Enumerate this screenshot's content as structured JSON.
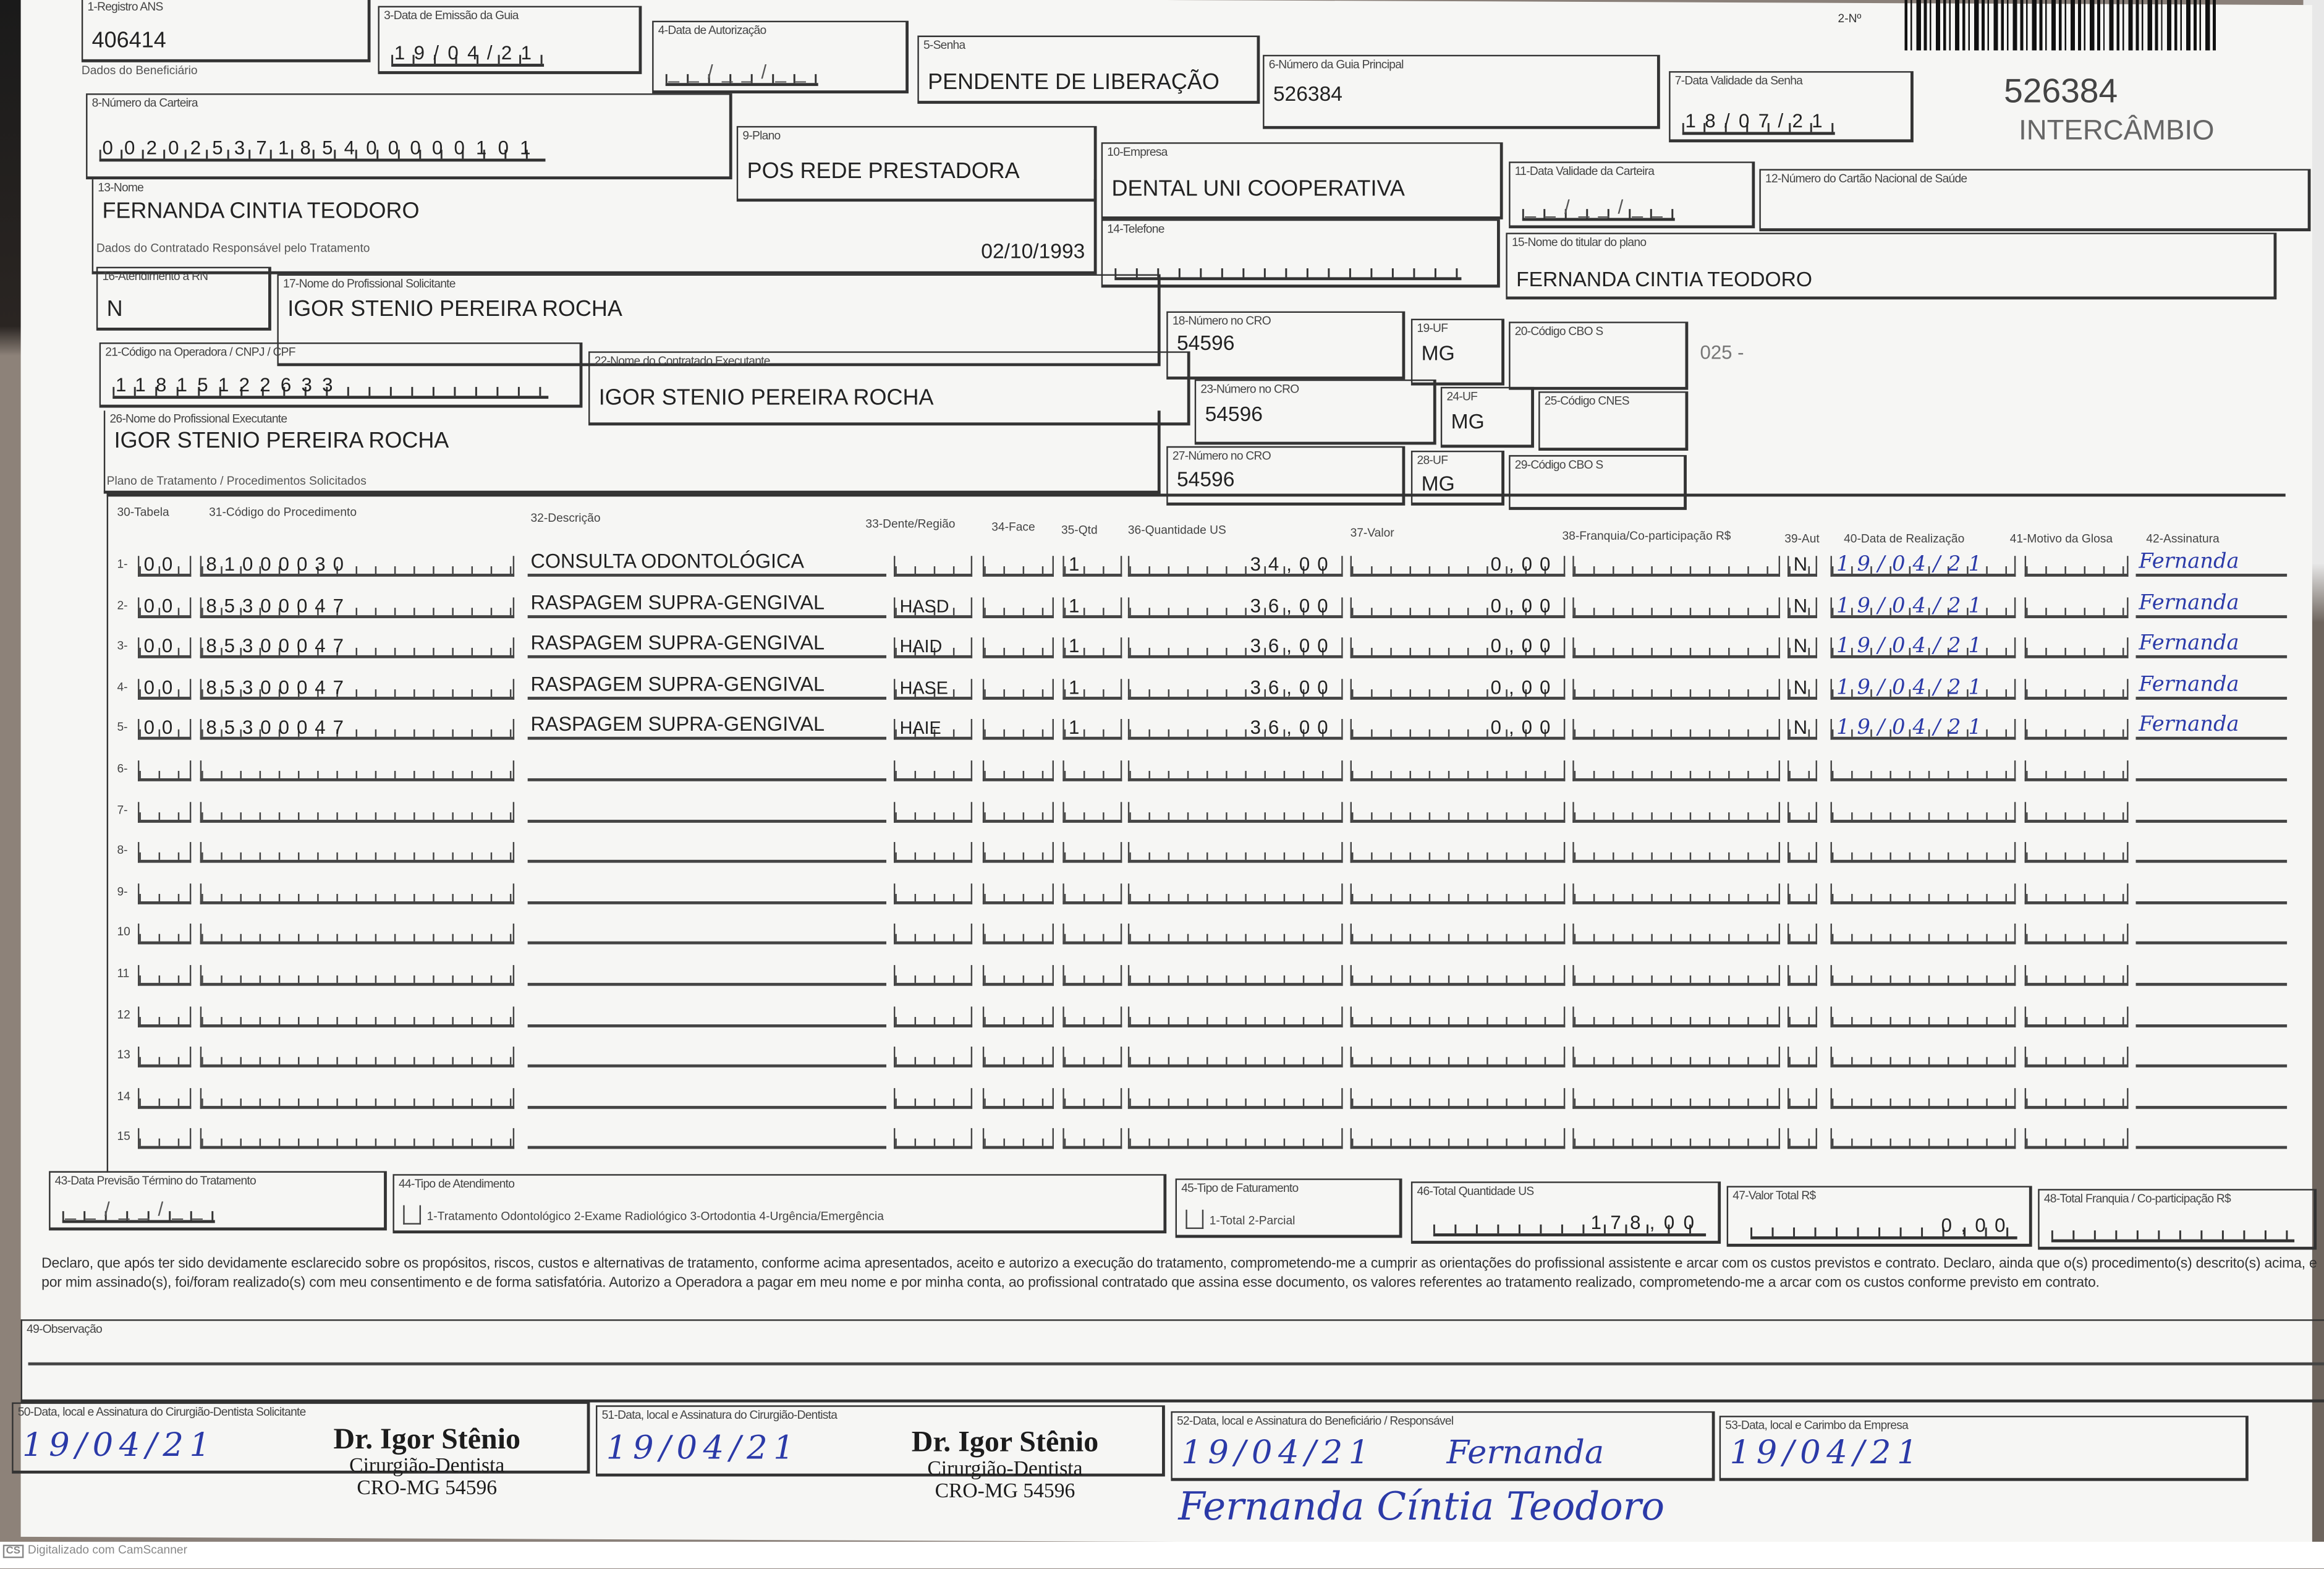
{
  "header": {
    "registro_ans": {
      "label": "1-Registro ANS",
      "value": "406414"
    },
    "data_emissao": {
      "label": "3-Data de Emissão da Guia",
      "value": "19/04/21"
    },
    "data_autorizacao": {
      "label": "4-Data de Autorização",
      "value": "__/__/__"
    },
    "senha": {
      "label": "5-Senha",
      "value": "PENDENTE DE LIBERAÇÃO"
    },
    "guia_principal": {
      "label": "6-Número da Guia Principal",
      "value": "526384"
    },
    "validade_senha": {
      "label": "7-Data Validade da Senha",
      "value": "18/07/21"
    },
    "numero_label": "2-Nº",
    "guide_number": "526384",
    "guide_type": "INTERCÂMBIO"
  },
  "beneficiario": {
    "section_title": "Dados do Beneficiário",
    "carteira": {
      "label": "8-Número da Carteira",
      "value": "00202537185400000101"
    },
    "plano": {
      "label": "9-Plano",
      "value": "POS REDE PRESTADORA"
    },
    "empresa": {
      "label": "10-Empresa",
      "value": "DENTAL UNI  COOPERATIVA"
    },
    "validade_carteira": {
      "label": "11-Data Validade da Carteira",
      "value": "__/__/__"
    },
    "cns": {
      "label": "12-Número do Cartão Nacional de Saúde",
      "value": ""
    },
    "nome": {
      "label": "13-Nome",
      "value": "FERNANDA CINTIA TEODORO",
      "birth_date": "02/10/1993"
    },
    "telefone": {
      "label": "14-Telefone",
      "value": "(  )      -     "
    },
    "titular": {
      "label": "15-Nome do titular do plano",
      "value": "FERNANDA CINTIA TEODORO"
    }
  },
  "contratado": {
    "section_title": "Dados do Contratado Responsável pelo Tratamento",
    "atendimento_rn": {
      "label": "16-Atendimento a RN",
      "value": "N"
    },
    "profissional_solicitante": {
      "label": "17-Nome do Profissional Solicitante",
      "value": "IGOR STENIO PEREIRA ROCHA"
    },
    "cro_18": {
      "label": "18-Número no CRO",
      "value": "54596"
    },
    "uf_19": {
      "label": "19-UF",
      "value": "MG"
    },
    "cbo_20": {
      "label": "20-Código CBO S",
      "value": ""
    },
    "cbo_note": "025 -",
    "codigo_operadora": {
      "label": "21-Código na Operadora / CNPJ / CPF",
      "value": "11815122633"
    },
    "contratado_executante": {
      "label": "22-Nome do Contratado Executante",
      "value": "IGOR STENIO PEREIRA ROCHA"
    },
    "cro_23": {
      "label": "23-Número no CRO",
      "value": "54596"
    },
    "uf_24": {
      "label": "24-UF",
      "value": "MG"
    },
    "cnes_25": {
      "label": "25-Código CNES",
      "value": ""
    },
    "profissional_executante": {
      "label": "26-Nome do Profissional Executante",
      "value": "IGOR STENIO PEREIRA ROCHA"
    },
    "cro_27": {
      "label": "27-Número no CRO",
      "value": "54596"
    },
    "uf_28": {
      "label": "28-UF",
      "value": "MG"
    },
    "cbo_29": {
      "label": "29-Código CBO S",
      "value": ""
    }
  },
  "plano_tratamento": {
    "section_title": "Plano de Tratamento / Procedimentos Solicitados",
    "columns": [
      "30-Tabela",
      "31-Código do Procedimento",
      "32-Descrição",
      "33-Dente/Região",
      "34-Face",
      "35-Qtd",
      "36-Quantidade US",
      "37-Valor",
      "38-Franquia/Co-participação R$",
      "39-Aut",
      "40-Data de Realização",
      "41-Motivo da Glosa",
      "42-Assinatura"
    ],
    "rows": [
      {
        "n": "1-",
        "tabela": "00",
        "codigo": "81000030",
        "descricao": "CONSULTA ODONTOLÓGICA",
        "dente": "",
        "face": "",
        "qtd": "1",
        "us": "34,00",
        "valor": "0,00",
        "franquia": "",
        "aut": "N",
        "data": "19/04/21",
        "glosa": "",
        "assinatura": "Fernanda"
      },
      {
        "n": "2-",
        "tabela": "00",
        "codigo": "85300047",
        "descricao": "RASPAGEM SUPRA-GENGIVAL",
        "dente": "HASD",
        "face": "",
        "qtd": "1",
        "us": "36,00",
        "valor": "0,00",
        "franquia": "",
        "aut": "N",
        "data": "19/04/21",
        "glosa": "",
        "assinatura": "Fernanda"
      },
      {
        "n": "3-",
        "tabela": "00",
        "codigo": "85300047",
        "descricao": "RASPAGEM SUPRA-GENGIVAL",
        "dente": "HAID",
        "face": "",
        "qtd": "1",
        "us": "36,00",
        "valor": "0,00",
        "franquia": "",
        "aut": "N",
        "data": "19/04/21",
        "glosa": "",
        "assinatura": "Fernanda"
      },
      {
        "n": "4-",
        "tabela": "00",
        "codigo": "85300047",
        "descricao": "RASPAGEM SUPRA-GENGIVAL",
        "dente": "HASE",
        "face": "",
        "qtd": "1",
        "us": "36,00",
        "valor": "0,00",
        "franquia": "",
        "aut": "N",
        "data": "19/04/21",
        "glosa": "",
        "assinatura": "Fernanda"
      },
      {
        "n": "5-",
        "tabela": "00",
        "codigo": "85300047",
        "descricao": "RASPAGEM SUPRA-GENGIVAL",
        "dente": "HAIE",
        "face": "",
        "qtd": "1",
        "us": "36,00",
        "valor": "0,00",
        "franquia": "",
        "aut": "N",
        "data": "19/04/21",
        "glosa": "",
        "assinatura": "Fernanda"
      },
      {
        "n": "6-"
      },
      {
        "n": "7-"
      },
      {
        "n": "8-"
      },
      {
        "n": "9-"
      },
      {
        "n": "10"
      },
      {
        "n": "11"
      },
      {
        "n": "12"
      },
      {
        "n": "13"
      },
      {
        "n": "14"
      },
      {
        "n": "15"
      }
    ]
  },
  "totais": {
    "previsao_termino": {
      "label": "43-Data Previsão Término do Tratamento",
      "value": "__/__/__"
    },
    "tipo_atendimento": {
      "label": "44-Tipo de Atendimento",
      "options": "1-Tratamento Odontológico  2-Exame Radiológico  3-Ortodontia  4-Urgência/Emergência"
    },
    "tipo_faturamento": {
      "label": "45-Tipo de Faturamento",
      "options": "1-Total  2-Parcial"
    },
    "total_us": {
      "label": "46-Total Quantidade US",
      "value": "178,00"
    },
    "valor_total": {
      "label": "47-Valor Total R$",
      "value": "0,00"
    },
    "total_franquia": {
      "label": "48-Total Franquia / Co-participação R$",
      "value": ""
    }
  },
  "declaracao": "Declaro, que após ter sido devidamente esclarecido sobre os propósitos, riscos, custos e alternativas de tratamento, conforme acima apresentados, aceito e autorizo a execução do tratamento, comprometendo-me a cumprir as orientações do profissional assistente e arcar com os custos previstos e contrato. Declaro, ainda que o(s) procedimento(s) descrito(s) acima, e por mim assinado(s), foi/foram realizado(s) com meu consentimento e de forma satisfatória. Autorizo a Operadora a pagar em meu nome e por minha conta, ao profissional contratado que assina esse documento, os valores referentes ao tratamento realizado, comprometendo-me a arcar com os custos conforme previsto em contrato.",
  "observacao": {
    "label": "49-Observação",
    "value": ""
  },
  "assinaturas": [
    {
      "label": "50-Data, local e Assinatura do Cirurgião-Dentista Solicitante",
      "date": "19/04/21"
    },
    {
      "label": "51-Data, local e Assinatura do Cirurgião-Dentista",
      "date": "19/04/21"
    },
    {
      "label": "52-Data, local e Assinatura do Beneficiário / Responsável",
      "date": "19/04/21",
      "signature": "Fernanda",
      "full_signature": "Fernanda Cíntia Teodoro"
    },
    {
      "label": "53-Data, local e Carimbo da Empresa",
      "date": "19/04/21"
    }
  ],
  "stamp": {
    "name": "Dr. Igor Stênio",
    "title": "Cirurgião-Dentista",
    "cro": "CRO-MG 54596"
  },
  "watermark": {
    "logo": "CS",
    "text": "Digitalizado com CamScanner"
  },
  "colors": {
    "ink_blue": "#2b3aa8",
    "print": "#222222",
    "paper": "#f6f6f4"
  }
}
